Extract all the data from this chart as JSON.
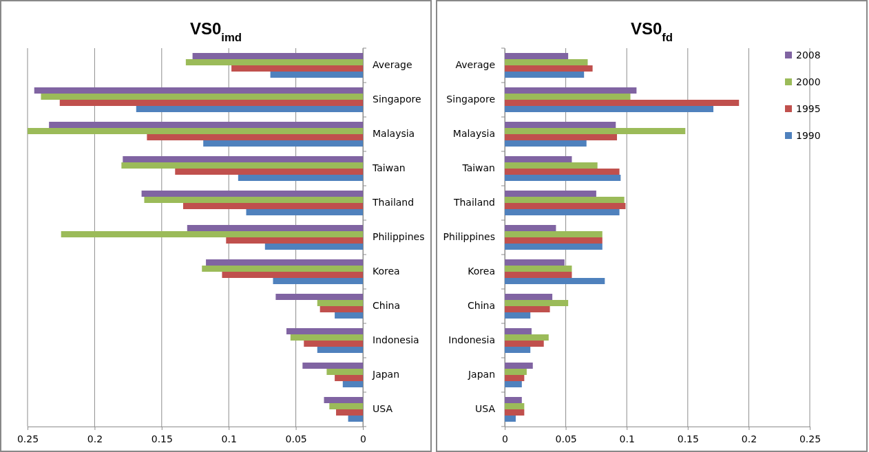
{
  "chart_data": [
    {
      "type": "bar",
      "title": "VS0$_{imd}$",
      "orientation": "horizontal",
      "categories": [
        "Average",
        "Singapore",
        "Malaysia",
        "Taiwan",
        "Thailand",
        "Philippines",
        "Korea",
        "China",
        "Indonesia",
        "Japan",
        "USA"
      ],
      "xlim": [
        0.25,
        0
      ],
      "xticks": [
        0.25,
        0.2,
        0.15,
        0.1,
        0.05,
        0
      ],
      "grid": "x",
      "legend": false,
      "series": [
        {
          "color": "#8064a2",
          "values": [
            0.127,
            0.245,
            0.234,
            0.179,
            0.165,
            0.131,
            0.117,
            0.065,
            0.057,
            0.045,
            0.029
          ]
        },
        {
          "color": "#9bbb59",
          "values": [
            0.132,
            0.24,
            0.25,
            0.18,
            0.163,
            0.225,
            0.12,
            0.034,
            0.054,
            0.027,
            0.025
          ]
        },
        {
          "color": "#c0504d",
          "values": [
            0.098,
            0.226,
            0.161,
            0.14,
            0.134,
            0.102,
            0.105,
            0.032,
            0.044,
            0.021,
            0.02
          ]
        },
        {
          "color": "#4f81bd",
          "values": [
            0.069,
            0.169,
            0.119,
            0.093,
            0.087,
            0.073,
            0.067,
            0.021,
            0.034,
            0.015,
            0.011
          ]
        }
      ]
    },
    {
      "type": "bar",
      "title": "VS0$_{fd}$",
      "orientation": "horizontal",
      "categories": [
        "Average",
        "Singapore",
        "Malaysia",
        "Taiwan",
        "Thailand",
        "Philippines",
        "Korea",
        "China",
        "Indonesia",
        "Japan",
        "USA"
      ],
      "xlim": [
        0,
        0.25
      ],
      "xticks": [
        0,
        0.05,
        0.1,
        0.15,
        0.2,
        0.25
      ],
      "grid": "x",
      "legend": "top right",
      "series": [
        {
          "name": "2008",
          "color": "#8064a2",
          "values": [
            0.052,
            0.108,
            0.091,
            0.055,
            0.075,
            0.042,
            0.049,
            0.039,
            0.022,
            0.023,
            0.014
          ]
        },
        {
          "name": "2000",
          "color": "#9bbb59",
          "values": [
            0.068,
            0.103,
            0.148,
            0.076,
            0.098,
            0.08,
            0.055,
            0.052,
            0.036,
            0.018,
            0.016
          ]
        },
        {
          "name": "1995",
          "color": "#c0504d",
          "values": [
            0.072,
            0.192,
            0.092,
            0.094,
            0.099,
            0.08,
            0.055,
            0.037,
            0.032,
            0.016,
            0.016
          ]
        },
        {
          "name": "1990",
          "color": "#4f81bd",
          "values": [
            0.065,
            0.171,
            0.067,
            0.095,
            0.094,
            0.08,
            0.082,
            0.021,
            0.021,
            0.014,
            0.009
          ]
        }
      ]
    }
  ]
}
